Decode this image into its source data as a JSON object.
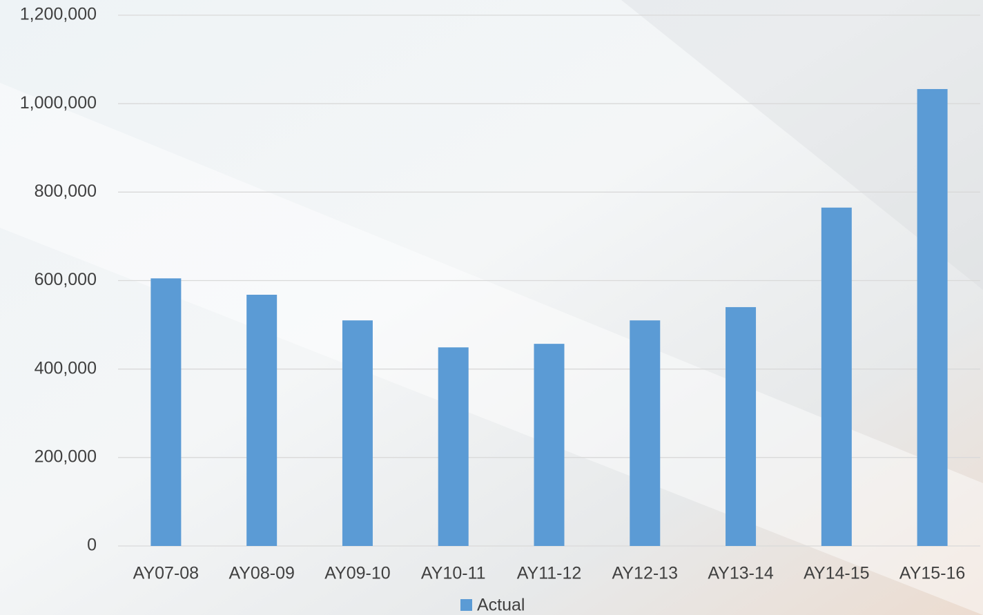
{
  "chart_data": {
    "type": "bar",
    "categories": [
      "AY07-08",
      "AY08-09",
      "AY09-10",
      "AY10-11",
      "AY11-12",
      "AY12-13",
      "AY13-14",
      "AY14-15",
      "AY15-16"
    ],
    "series": [
      {
        "name": "Actual",
        "color": "#5b9bd5",
        "values": [
          605000,
          568000,
          510000,
          449000,
          457000,
          510000,
          540000,
          765000,
          1033000
        ]
      }
    ],
    "ylim": [
      0,
      1200000
    ],
    "yticks": [
      0,
      {
        "value": 200000,
        "label": "200,000"
      },
      {
        "value": 400000,
        "label": "400,000"
      },
      {
        "value": 600000,
        "label": "600,000"
      },
      {
        "value": 800000,
        "label": "800,000"
      },
      {
        "value": 1000000,
        "label": "1,000,000"
      },
      {
        "value": 1200000,
        "label": "1,200,000"
      }
    ],
    "grid": true,
    "legend": "bottom"
  }
}
